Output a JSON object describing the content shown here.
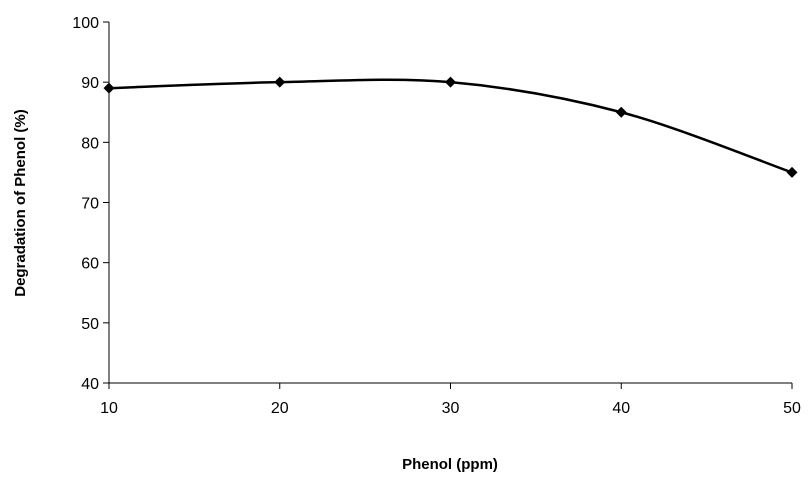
{
  "chart_data": {
    "type": "line",
    "title": "",
    "xlabel": "Phenol (ppm)",
    "ylabel": "Degradation of Phenol (%)",
    "x": [
      10,
      20,
      30,
      40,
      50
    ],
    "series": [
      {
        "values": [
          89,
          90,
          90,
          85,
          75
        ]
      }
    ],
    "xlim": [
      10,
      50
    ],
    "ylim": [
      40,
      100
    ],
    "xticks": [
      10,
      20,
      30,
      40,
      50
    ],
    "yticks": [
      40,
      50,
      60,
      70,
      80,
      90,
      100
    ],
    "grid": false,
    "legend": "none",
    "smooth": true,
    "marker": "diamond",
    "line_color": "#000000"
  }
}
